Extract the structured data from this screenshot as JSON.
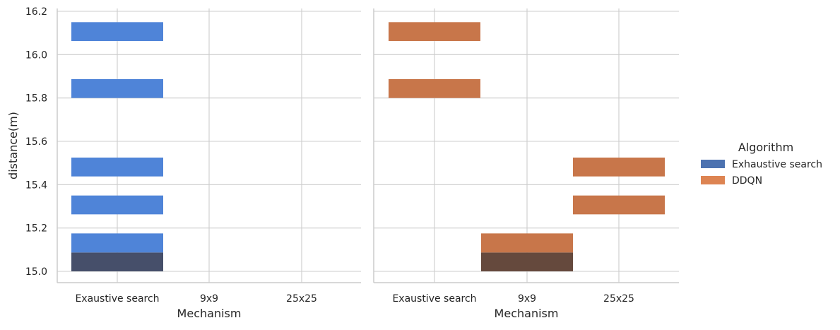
{
  "chart_data": {
    "type": "histogram-2d",
    "facet_by": "Algorithm",
    "ylabel": "distance(m)",
    "ylim": [
      14.95,
      16.22
    ],
    "yticks": [
      "15.0",
      "15.2",
      "15.4",
      "15.6",
      "15.8",
      "16.0",
      "16.2"
    ],
    "grid": true,
    "legend": {
      "title": "Algorithm",
      "position": "right",
      "entries": [
        {
          "label": "Exhaustive search",
          "color": "#4c72b0"
        },
        {
          "label": "DDQN",
          "color": "#dd8452"
        }
      ]
    },
    "panels": [
      {
        "algorithm": "Exhaustive search",
        "xlabel": "Mechanism",
        "categories": [
          "Exaustive search",
          "9x9",
          "25x25"
        ],
        "bar_color": "#4f84d8",
        "dense_color": "#464f6a",
        "bins": [
          {
            "category": "Exaustive search",
            "y0": 15.0,
            "y1": 15.087,
            "count": 2
          },
          {
            "category": "Exaustive search",
            "y0": 15.087,
            "y1": 15.175,
            "count": 1
          },
          {
            "category": "Exaustive search",
            "y0": 15.263,
            "y1": 15.35,
            "count": 1
          },
          {
            "category": "Exaustive search",
            "y0": 15.438,
            "y1": 15.525,
            "count": 1
          },
          {
            "category": "Exaustive search",
            "y0": 15.8,
            "y1": 15.887,
            "count": 1
          },
          {
            "category": "Exaustive search",
            "y0": 16.063,
            "y1": 16.15,
            "count": 1
          }
        ]
      },
      {
        "algorithm": "DDQN",
        "xlabel": "Mechanism",
        "categories": [
          "Exaustive search",
          "9x9",
          "25x25"
        ],
        "bar_color": "#c8764a",
        "dense_color": "#65493d",
        "bins": [
          {
            "category": "Exaustive search",
            "y0": 15.8,
            "y1": 15.887,
            "count": 1
          },
          {
            "category": "Exaustive search",
            "y0": 16.063,
            "y1": 16.15,
            "count": 1
          },
          {
            "category": "9x9",
            "y0": 15.0,
            "y1": 15.087,
            "count": 2
          },
          {
            "category": "9x9",
            "y0": 15.087,
            "y1": 15.175,
            "count": 1
          },
          {
            "category": "25x25",
            "y0": 15.263,
            "y1": 15.35,
            "count": 1
          },
          {
            "category": "25x25",
            "y0": 15.438,
            "y1": 15.525,
            "count": 1
          }
        ]
      }
    ]
  }
}
